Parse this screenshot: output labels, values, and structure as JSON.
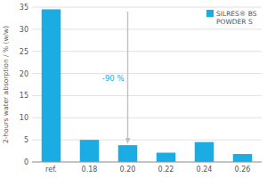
{
  "chart_data": {
    "type": "bar",
    "categories": [
      "ref.",
      "0.18",
      "0.20",
      "0.22",
      "0.24",
      "0.26"
    ],
    "series": [
      {
        "name": "SILRES® BS\nPOWDER S",
        "color": "#1AACE3",
        "values": [
          34.5,
          5.0,
          3.8,
          2.1,
          4.5,
          1.8
        ]
      }
    ],
    "y_label": "2-hours water absorption / % (w/w)",
    "ylim": [
      0,
      35
    ],
    "yticks": [
      0,
      5,
      10,
      15,
      20,
      25,
      30,
      35
    ],
    "grid": true,
    "legend": "upper right",
    "annotations": [
      {
        "text": "-90 %",
        "color": "#1AACE3",
        "category": "0.20",
        "y": 19.0,
        "arrow": {
          "from": 34.0,
          "to": 4.2,
          "color": "#c0c0c0"
        }
      }
    ]
  }
}
